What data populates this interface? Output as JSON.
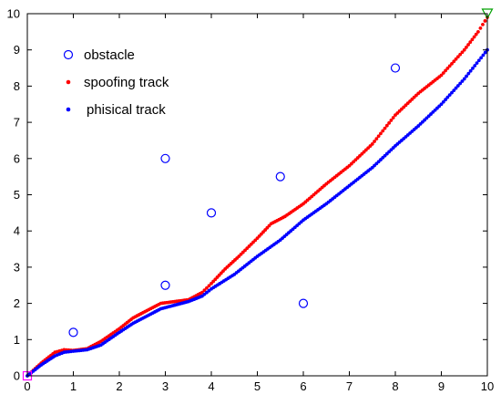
{
  "chart_data": {
    "type": "scatter",
    "title": "",
    "xlabel": "",
    "ylabel": "",
    "xlim": [
      0,
      10
    ],
    "ylim": [
      0,
      10
    ],
    "x_ticks": [
      "0",
      "1",
      "2",
      "3",
      "4",
      "5",
      "6",
      "7",
      "8",
      "9",
      "10"
    ],
    "y_ticks": [
      "0",
      "1",
      "2",
      "3",
      "4",
      "5",
      "6",
      "7",
      "8",
      "9",
      "10"
    ],
    "grid": false,
    "legend_position": "top-left",
    "series": [
      {
        "name": "obstacle",
        "marker": "circle-open",
        "color": "#0000ff",
        "points": [
          [
            1,
            1.2
          ],
          [
            3,
            6
          ],
          [
            3,
            2.5
          ],
          [
            4,
            4.5
          ],
          [
            5.5,
            5.5
          ],
          [
            6,
            2
          ],
          [
            8,
            8.5
          ]
        ]
      },
      {
        "name": "spoofing track",
        "marker": "dot",
        "color": "#ff0000",
        "points": [
          [
            0,
            0
          ],
          [
            0.3,
            0.35
          ],
          [
            0.6,
            0.65
          ],
          [
            0.8,
            0.72
          ],
          [
            1.0,
            0.7
          ],
          [
            1.3,
            0.75
          ],
          [
            1.6,
            0.95
          ],
          [
            2.0,
            1.3
          ],
          [
            2.3,
            1.6
          ],
          [
            2.6,
            1.8
          ],
          [
            2.9,
            2.0
          ],
          [
            3.2,
            2.05
          ],
          [
            3.5,
            2.1
          ],
          [
            3.8,
            2.3
          ],
          [
            4.0,
            2.55
          ],
          [
            4.3,
            2.95
          ],
          [
            4.6,
            3.3
          ],
          [
            5.0,
            3.8
          ],
          [
            5.3,
            4.2
          ],
          [
            5.6,
            4.4
          ],
          [
            6.0,
            4.75
          ],
          [
            6.5,
            5.3
          ],
          [
            7.0,
            5.8
          ],
          [
            7.5,
            6.4
          ],
          [
            8.0,
            7.2
          ],
          [
            8.5,
            7.8
          ],
          [
            9.0,
            8.3
          ],
          [
            9.5,
            9.0
          ],
          [
            9.8,
            9.5
          ],
          [
            10.0,
            9.9
          ]
        ]
      },
      {
        "name": "phisical track",
        "marker": "dot",
        "color": "#0000ff",
        "points": [
          [
            0,
            0
          ],
          [
            0.3,
            0.3
          ],
          [
            0.6,
            0.55
          ],
          [
            0.8,
            0.65
          ],
          [
            1.0,
            0.68
          ],
          [
            1.3,
            0.72
          ],
          [
            1.6,
            0.85
          ],
          [
            2.0,
            1.2
          ],
          [
            2.3,
            1.45
          ],
          [
            2.6,
            1.65
          ],
          [
            2.9,
            1.85
          ],
          [
            3.2,
            1.95
          ],
          [
            3.5,
            2.05
          ],
          [
            3.8,
            2.2
          ],
          [
            4.0,
            2.4
          ],
          [
            4.5,
            2.8
          ],
          [
            5.0,
            3.3
          ],
          [
            5.5,
            3.75
          ],
          [
            6.0,
            4.3
          ],
          [
            6.5,
            4.75
          ],
          [
            7.0,
            5.25
          ],
          [
            7.5,
            5.75
          ],
          [
            8.0,
            6.35
          ],
          [
            8.5,
            6.9
          ],
          [
            9.0,
            7.5
          ],
          [
            9.5,
            8.2
          ],
          [
            10.0,
            9.0
          ]
        ]
      }
    ],
    "markers": [
      {
        "name": "start",
        "marker": "square-open",
        "color": "#ff00ff",
        "point": [
          0,
          0
        ]
      },
      {
        "name": "goal",
        "marker": "triangle-down-open",
        "color": "#00a000",
        "point": [
          10,
          10
        ]
      }
    ]
  }
}
